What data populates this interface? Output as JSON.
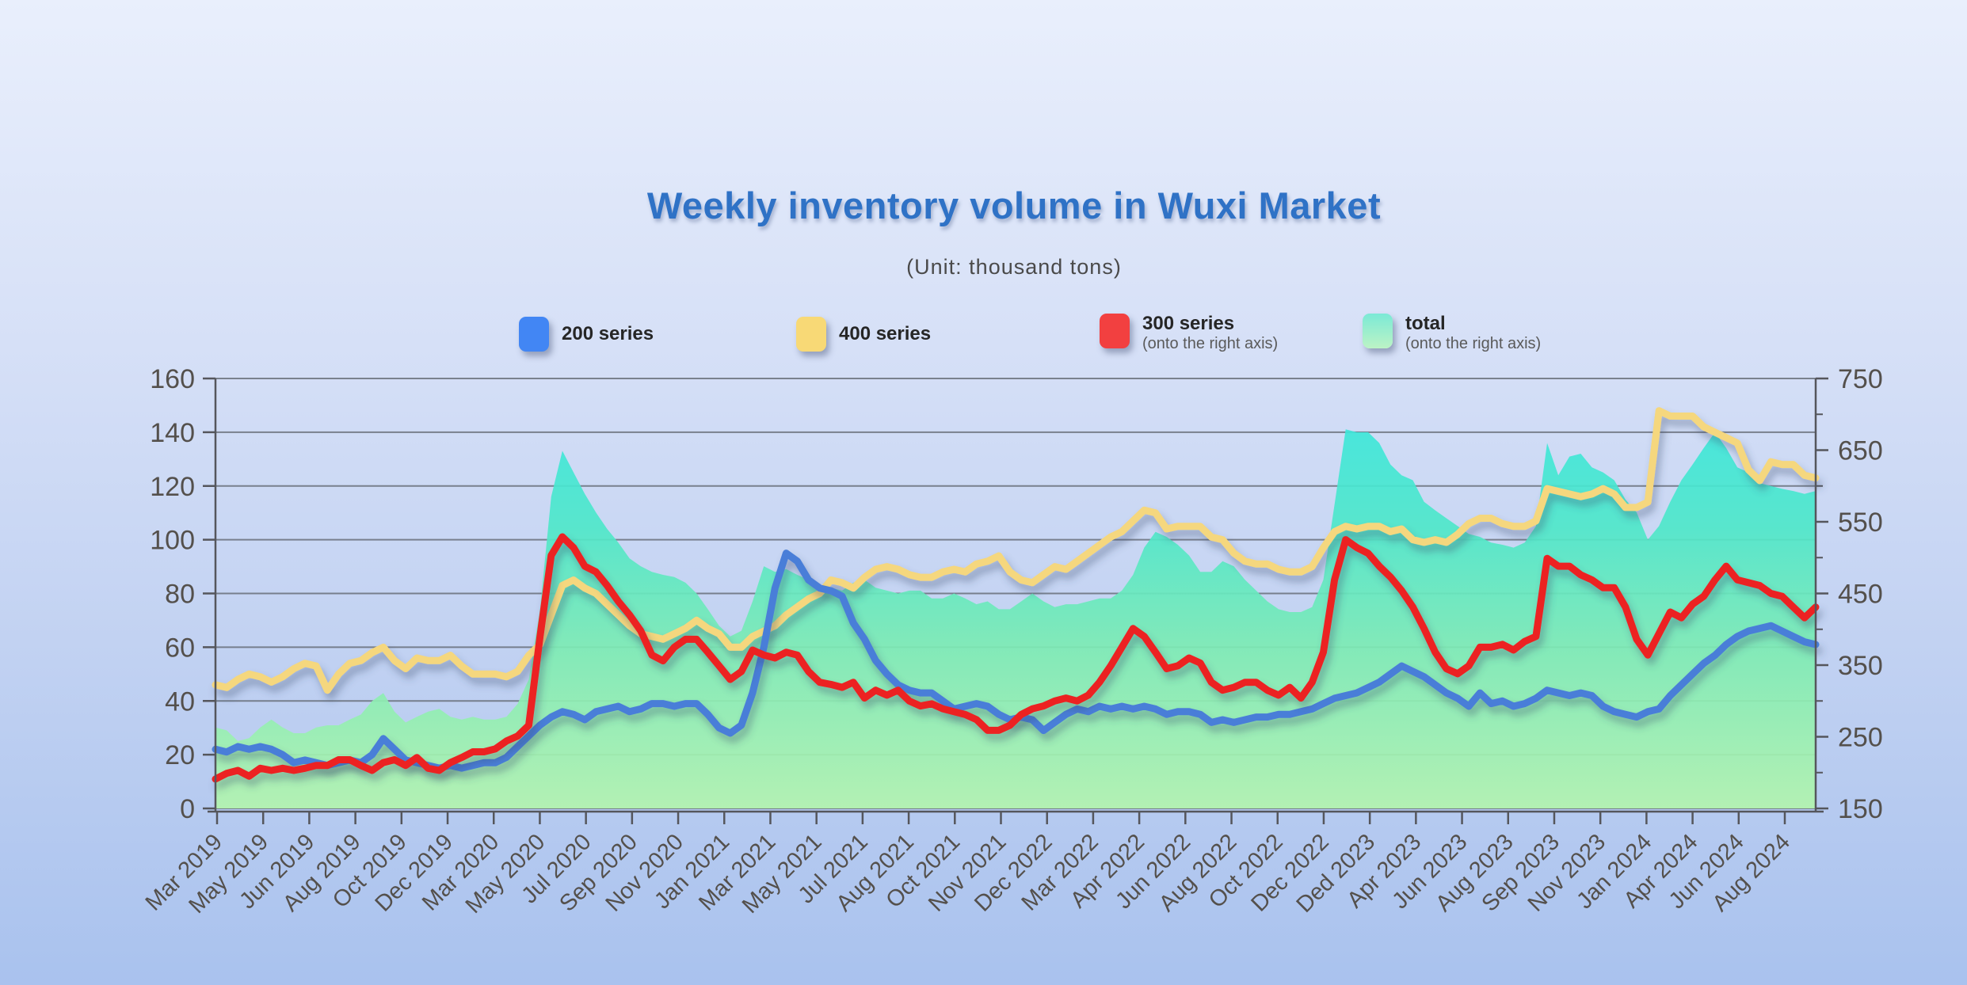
{
  "title": "Weekly inventory volume in Wuxi Market",
  "subtitle": "(Unit: thousand tons)",
  "legend": [
    {
      "label": "200 series",
      "sub": "",
      "color": "#4286f4"
    },
    {
      "label": "400 series",
      "sub": "",
      "color": "#f8d976"
    },
    {
      "label": "300 series",
      "sub": "(onto the right axis)",
      "color": "#f24040"
    },
    {
      "label": "total",
      "sub": "(onto the right axis)",
      "color_top": "#7be9d6",
      "color_bottom": "#bcf3c5"
    }
  ],
  "colors": {
    "title": "#2f72c6",
    "gridline": "#646a74",
    "axis": "#55565c",
    "axis_text": "#54504c"
  },
  "chart_data": {
    "type": "line",
    "title": "Weekly inventory volume in Wuxi Market",
    "subtitle": "(Unit: thousand tons)",
    "grid": true,
    "legend_position": "top",
    "left_axis": {
      "min": 0,
      "max": 160,
      "step": 20,
      "tick_labels": [
        "0",
        "20",
        "40",
        "60",
        "80",
        "100",
        "120",
        "140",
        "160"
      ]
    },
    "right_axis": {
      "min": 150,
      "max": 750,
      "step": 100,
      "tick_labels": [
        "150",
        "250",
        "350",
        "450",
        "550",
        "650",
        "750"
      ]
    },
    "x_axis": {
      "unit": "weekly",
      "tick_labels": [
        "Mar 2019",
        "May 2019",
        "Jun 2019",
        "Aug 2019",
        "Oct 2019",
        "Dec 2019",
        "Mar 2020",
        "May 2020",
        "Jul 2020",
        "Sep 2020",
        "Nov 2020",
        "Jan 2021",
        "Mar 2021",
        "May 2021",
        "Jul 2021",
        "Aug 2021",
        "Oct 2021",
        "Nov 2021",
        "Dec 2022",
        "Mar 2022",
        "Apr 2022",
        "Jun 2022",
        "Aug 2022",
        "Oct 2022",
        "Dec 2022",
        "Ded 2023",
        "Apr 2023",
        "Jun 2023",
        "Aug 2023",
        "Sep 2023",
        "Nov 2023",
        "Jan 2024",
        "Apr 2024",
        "Jun 2024",
        "Aug 2024"
      ]
    },
    "series": [
      {
        "name": "total",
        "axis": "right",
        "style": "area",
        "gradient": [
          "#35e6e2",
          "#4fe7c9",
          "#7cebb4",
          "#b3f4ae"
        ],
        "values": [
          263,
          259,
          244,
          248,
          263,
          274,
          263,
          255,
          255,
          263,
          266,
          266,
          274,
          281,
          300,
          311,
          285,
          270,
          278,
          285,
          289,
          278,
          274,
          278,
          274,
          274,
          278,
          296,
          330,
          428,
          585,
          649,
          619,
          589,
          563,
          540,
          521,
          499,
          488,
          480,
          476,
          473,
          465,
          450,
          428,
          405,
          390,
          398,
          439,
          488,
          480,
          484,
          476,
          469,
          461,
          458,
          454,
          465,
          469,
          458,
          454,
          450,
          454,
          454,
          443,
          443,
          450,
          443,
          435,
          439,
          428,
          428,
          439,
          450,
          439,
          431,
          435,
          435,
          439,
          443,
          443,
          454,
          476,
          514,
          536,
          529,
          518,
          503,
          480,
          480,
          495,
          488,
          469,
          454,
          439,
          428,
          424,
          424,
          431,
          469,
          574,
          679,
          675,
          675,
          660,
          630,
          615,
          608,
          578,
          566,
          555,
          544,
          533,
          529,
          521,
          518,
          514,
          521,
          544,
          660,
          615,
          641,
          645,
          626,
          619,
          608,
          581,
          563,
          525,
          544,
          578,
          608,
          630,
          653,
          675,
          653,
          626,
          619,
          604,
          600,
          596,
          593,
          589,
          593
        ]
      },
      {
        "name": "400 series",
        "axis": "left",
        "style": "line",
        "color": "#f5d77e",
        "values": [
          46,
          45,
          48,
          50,
          49,
          47,
          49,
          52,
          54,
          53,
          44,
          50,
          54,
          55,
          58,
          60,
          55,
          52,
          56,
          55,
          55,
          57,
          53,
          50,
          50,
          50,
          49,
          51,
          57,
          61,
          72,
          83,
          85,
          82,
          80,
          76,
          72,
          68,
          65,
          64,
          63,
          65,
          67,
          70,
          67,
          65,
          60,
          60,
          64,
          66,
          68,
          72,
          75,
          78,
          80,
          85,
          84,
          82,
          86,
          89,
          90,
          89,
          87,
          86,
          86,
          88,
          89,
          88,
          91,
          92,
          94,
          88,
          85,
          84,
          87,
          90,
          89,
          92,
          95,
          98,
          101,
          103,
          107,
          111,
          110,
          104,
          105,
          105,
          105,
          101,
          100,
          95,
          92,
          91,
          91,
          89,
          88,
          88,
          90,
          97,
          103,
          105,
          104,
          105,
          105,
          103,
          104,
          100,
          99,
          100,
          99,
          102,
          106,
          108,
          108,
          106,
          105,
          105,
          107,
          119,
          118,
          117,
          116,
          117,
          119,
          117,
          112,
          112,
          114,
          148,
          146,
          146,
          146,
          142,
          140,
          138,
          136,
          126,
          122,
          129,
          128,
          128,
          124,
          123
        ]
      },
      {
        "name": "200 series",
        "axis": "left",
        "style": "line",
        "color": "#4a7ed8",
        "values": [
          22,
          21,
          23,
          22,
          23,
          22,
          20,
          17,
          18,
          17,
          16,
          17,
          18,
          17,
          20,
          26,
          22,
          18,
          17,
          16,
          15,
          16,
          15,
          16,
          17,
          17,
          19,
          23,
          27,
          31,
          34,
          36,
          35,
          33,
          36,
          37,
          38,
          36,
          37,
          39,
          39,
          38,
          39,
          39,
          35,
          30,
          28,
          31,
          43,
          60,
          82,
          95,
          92,
          85,
          82,
          81,
          79,
          69,
          63,
          55,
          50,
          46,
          44,
          43,
          43,
          40,
          37,
          38,
          39,
          38,
          35,
          33,
          34,
          33,
          29,
          32,
          35,
          37,
          36,
          38,
          37,
          38,
          37,
          38,
          37,
          35,
          36,
          36,
          35,
          32,
          33,
          32,
          33,
          34,
          34,
          35,
          35,
          36,
          37,
          39,
          41,
          42,
          43,
          45,
          47,
          50,
          53,
          51,
          49,
          46,
          43,
          41,
          38,
          43,
          39,
          40,
          38,
          39,
          41,
          44,
          43,
          42,
          43,
          42,
          38,
          36,
          35,
          34,
          36,
          37,
          42,
          46,
          50,
          54,
          57,
          61,
          64,
          66,
          67,
          68,
          66,
          64,
          62,
          61
        ]
      },
      {
        "name": "300 series",
        "axis": "right",
        "style": "line",
        "color": "#ec2424",
        "values": [
          191,
          199,
          203,
          195,
          206,
          203,
          206,
          203,
          206,
          210,
          210,
          218,
          218,
          210,
          203,
          214,
          218,
          210,
          221,
          206,
          203,
          214,
          221,
          229,
          229,
          233,
          244,
          251,
          266,
          390,
          503,
          529,
          514,
          488,
          480,
          461,
          439,
          420,
          398,
          364,
          356,
          375,
          386,
          386,
          368,
          349,
          330,
          341,
          371,
          364,
          360,
          368,
          364,
          341,
          326,
          323,
          319,
          326,
          304,
          315,
          308,
          315,
          300,
          293,
          296,
          289,
          285,
          281,
          274,
          259,
          259,
          266,
          281,
          289,
          293,
          300,
          304,
          300,
          308,
          326,
          349,
          375,
          401,
          390,
          368,
          345,
          349,
          360,
          353,
          326,
          315,
          319,
          326,
          326,
          315,
          308,
          319,
          304,
          326,
          368,
          469,
          525,
          514,
          506,
          488,
          473,
          454,
          431,
          401,
          368,
          345,
          338,
          349,
          375,
          375,
          379,
          371,
          383,
          390,
          499,
          488,
          488,
          476,
          469,
          458,
          458,
          431,
          386,
          364,
          394,
          424,
          416,
          435,
          446,
          469,
          488,
          469,
          465,
          461,
          450,
          446,
          431,
          416,
          431
        ]
      }
    ]
  }
}
